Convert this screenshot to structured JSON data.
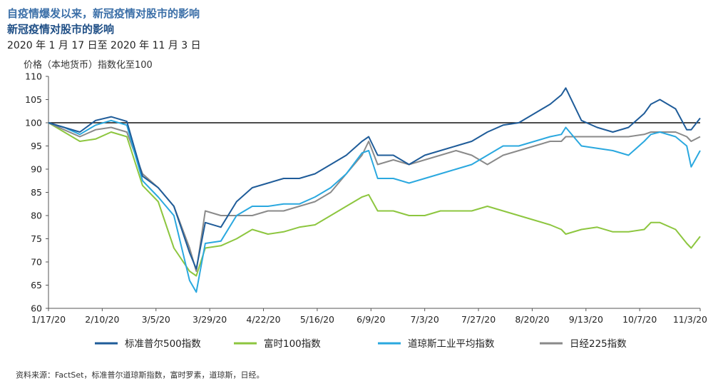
{
  "header": {
    "title_line1": "自疫情爆发以来，新冠疫情对股市的影响",
    "title_line2": "新冠疫情对股市的影响",
    "subtitle": "2020 年 1 月 17 日至 2020 年 11 月 3 日"
  },
  "footer": {
    "source": "资料来源：FactSet，标准普尔道琼斯指数，富时罗素，道琼斯，日经。"
  },
  "chart_data": {
    "type": "line",
    "ylabel": "价格（本地货币）指数化至100",
    "xlabel": "",
    "ylim": [
      60,
      110
    ],
    "yticks": [
      60,
      65,
      70,
      75,
      80,
      85,
      90,
      95,
      100,
      105,
      110
    ],
    "xticks": [
      "1/17/20",
      "2/10/20",
      "3/5/20",
      "3/29/20",
      "4/22/20",
      "5/16/20",
      "6/9/20",
      "7/3/20",
      "7/27/20",
      "8/20/20",
      "9/13/20",
      "10/7/20",
      "11/3/20"
    ],
    "grid": false,
    "reference_line": 100,
    "legend_position": "bottom",
    "x": [
      "1/17/20",
      "1/24/20",
      "1/31/20",
      "2/7/20",
      "2/14/20",
      "2/21/20",
      "2/28/20",
      "3/6/20",
      "3/13/20",
      "3/20/20",
      "3/23/20",
      "3/27/20",
      "4/3/20",
      "4/10/20",
      "4/17/20",
      "4/24/20",
      "5/1/20",
      "5/8/20",
      "5/15/20",
      "5/22/20",
      "5/29/20",
      "6/5/20",
      "6/8/20",
      "6/12/20",
      "6/19/20",
      "6/26/20",
      "7/3/20",
      "7/10/20",
      "7/17/20",
      "7/24/20",
      "7/31/20",
      "8/7/20",
      "8/14/20",
      "8/21/20",
      "8/28/20",
      "9/2/20",
      "9/4/20",
      "9/11/20",
      "9/18/20",
      "9/25/20",
      "10/2/20",
      "10/9/20",
      "10/12/20",
      "10/16/20",
      "10/23/20",
      "10/28/20",
      "10/30/20",
      "11/3/20"
    ],
    "series": [
      {
        "name": "标准普尔500指数",
        "color": "#1f5c99",
        "values": [
          100,
          99.0,
          98.0,
          100.5,
          101.3,
          100.3,
          88.5,
          86,
          82,
          72,
          68.5,
          78.5,
          77.5,
          83,
          86,
          87,
          88,
          88,
          89,
          91,
          93,
          96,
          97,
          93,
          93,
          91,
          93,
          94,
          95,
          96,
          98,
          99.5,
          100,
          102,
          104,
          106,
          107.5,
          100.5,
          99,
          98,
          99,
          102,
          104,
          105,
          103,
          98.5,
          98.5,
          101
        ]
      },
      {
        "name": "富时100指数",
        "color": "#8dc63f",
        "values": [
          100,
          98.0,
          96.0,
          96.5,
          98.0,
          97.0,
          86.5,
          83,
          73,
          68,
          67,
          73,
          73.5,
          75,
          77,
          76,
          76.5,
          77.5,
          78,
          80,
          82,
          84,
          84.5,
          81,
          81,
          80,
          80,
          81,
          81,
          81,
          82,
          81,
          80,
          79,
          78,
          77,
          76,
          77,
          77.5,
          76.5,
          76.5,
          77,
          78.5,
          78.5,
          77,
          74,
          73,
          75.5
        ]
      },
      {
        "name": "道琼斯工业平均指数",
        "color": "#2aa8df",
        "values": [
          100,
          99.0,
          97.5,
          99.5,
          100.5,
          99.5,
          87.5,
          84,
          80,
          66,
          63.5,
          74,
          74.5,
          80,
          82,
          82,
          82.5,
          82.5,
          84,
          86,
          89,
          93.5,
          94,
          88,
          88,
          87,
          88,
          89,
          90,
          91,
          93,
          95,
          95,
          96,
          97,
          97.5,
          99,
          95,
          94.5,
          94,
          93,
          96,
          97.5,
          98,
          97,
          95,
          90.5,
          94
        ]
      },
      {
        "name": "日经225指数",
        "color": "#8a8a8a",
        "values": [
          100,
          98.5,
          97.0,
          98.5,
          99.0,
          98.0,
          89.0,
          86,
          82,
          73,
          68,
          81,
          80,
          80,
          80,
          81,
          81,
          82,
          83,
          85,
          89,
          93,
          96,
          91,
          92,
          91,
          92,
          93,
          94,
          93,
          91,
          93,
          94,
          95,
          96,
          96,
          97,
          97,
          97,
          97,
          97,
          97.5,
          98,
          98,
          98,
          97,
          96,
          97
        ]
      }
    ]
  }
}
